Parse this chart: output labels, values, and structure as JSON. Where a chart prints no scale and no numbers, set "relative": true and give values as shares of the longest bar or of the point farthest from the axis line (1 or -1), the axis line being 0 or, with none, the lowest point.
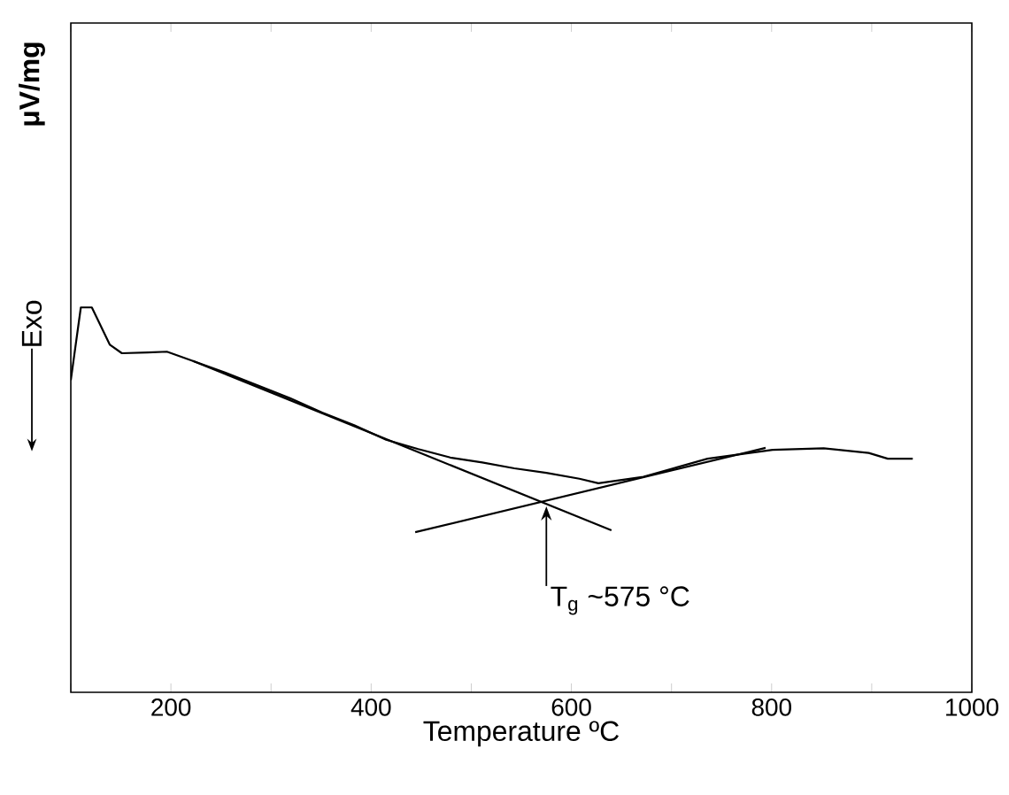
{
  "chart_data": {
    "type": "line",
    "relative": true,
    "xlabel": "Temperature ºC",
    "xlim": [
      100,
      1000
    ],
    "xticks": [
      {
        "value": 100,
        "label": null
      },
      200,
      {
        "value": 300,
        "label": null
      },
      400,
      {
        "value": 500,
        "label": null
      },
      600,
      {
        "value": 700,
        "label": null
      },
      800,
      {
        "value": 900,
        "label": null
      },
      1000
    ],
    "series": [
      {
        "color": "#000000",
        "x": [
          100,
          110,
          121,
          139,
          151,
          177,
          196,
          222,
          254,
          286,
          319,
          351,
          383,
          415,
          447,
          479,
          511,
          543,
          575,
          608,
          627,
          672,
          736,
          801,
          852,
          897,
          916,
          941
        ],
        "values": [
          0.811,
          1.0,
          1.0,
          0.903,
          0.881,
          0.883,
          0.885,
          0.861,
          0.831,
          0.798,
          0.764,
          0.727,
          0.694,
          0.656,
          0.632,
          0.61,
          0.597,
          0.582,
          0.57,
          0.555,
          0.543,
          0.56,
          0.607,
          0.63,
          0.634,
          0.622,
          0.607,
          0.607
        ]
      },
      {
        "color": "#000000",
        "x": [
          222,
          640
        ],
        "values": [
          0.861,
          0.421
        ]
      },
      {
        "color": "#000000",
        "x": [
          444,
          794
        ],
        "values": [
          0.416,
          0.635
        ]
      }
    ],
    "annotations": [
      {
        "text": "T$_{g}$ ~575 °C",
        "x": 575,
        "y": 0.497
      },
      "μV/mg",
      "Exo"
    ],
    "grid": false,
    "marker": "none",
    "line_style": "solid"
  }
}
